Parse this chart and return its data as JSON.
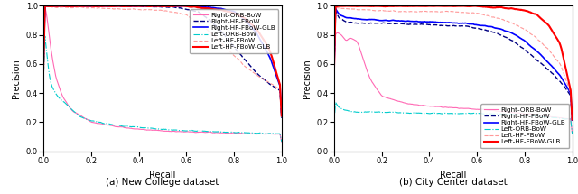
{
  "subplot_titles": [
    "(a) New College dataset",
    "(b) City Center dataset"
  ],
  "xlabel": "Recall",
  "ylabel": "Precision",
  "xlim": [
    0,
    1
  ],
  "ylim": [
    0,
    1
  ],
  "legend_entries": [
    "Right-ORB-BoW",
    "Right-HF-FBoW",
    "Right-HF-FBoW-GLB",
    "Left-ORB-BoW",
    "Left-HF-FBoW",
    "Left-HF-FBoW-GLB"
  ],
  "line_styles": [
    {
      "color": "#ff69b4",
      "linestyle": "-",
      "linewidth": 0.8
    },
    {
      "color": "#000080",
      "linestyle": "--",
      "linewidth": 1.0
    },
    {
      "color": "#0000ff",
      "linestyle": "-",
      "linewidth": 1.2
    },
    {
      "color": "#00cccc",
      "linestyle": "-.",
      "linewidth": 0.8
    },
    {
      "color": "#ff9999",
      "linestyle": "--",
      "linewidth": 0.8
    },
    {
      "color": "#ff0000",
      "linestyle": "-",
      "linewidth": 1.5
    }
  ],
  "nc_curves": [
    [
      [
        0,
        1.0
      ],
      [
        0.01,
        0.99
      ],
      [
        0.03,
        0.72
      ],
      [
        0.05,
        0.52
      ],
      [
        0.08,
        0.38
      ],
      [
        0.12,
        0.28
      ],
      [
        0.2,
        0.2
      ],
      [
        0.35,
        0.16
      ],
      [
        0.5,
        0.14
      ],
      [
        0.7,
        0.13
      ],
      [
        0.9,
        0.12
      ],
      [
        1.0,
        0.12
      ]
    ],
    [
      [
        0,
        1.0
      ],
      [
        0.05,
        1.0
      ],
      [
        0.2,
        1.0
      ],
      [
        0.4,
        1.0
      ],
      [
        0.55,
        0.99
      ],
      [
        0.65,
        0.96
      ],
      [
        0.7,
        0.9
      ],
      [
        0.75,
        0.82
      ],
      [
        0.8,
        0.72
      ],
      [
        0.85,
        0.62
      ],
      [
        0.9,
        0.53
      ],
      [
        0.95,
        0.46
      ],
      [
        1.0,
        0.41
      ]
    ],
    [
      [
        0,
        1.0
      ],
      [
        0.05,
        1.0
      ],
      [
        0.2,
        1.0
      ],
      [
        0.4,
        1.0
      ],
      [
        0.6,
        1.0
      ],
      [
        0.7,
        0.99
      ],
      [
        0.75,
        0.98
      ],
      [
        0.8,
        0.96
      ],
      [
        0.85,
        0.9
      ],
      [
        0.9,
        0.8
      ],
      [
        0.95,
        0.65
      ],
      [
        1.0,
        0.42
      ]
    ],
    [
      [
        0,
        0.88
      ],
      [
        0.01,
        0.75
      ],
      [
        0.02,
        0.58
      ],
      [
        0.03,
        0.47
      ],
      [
        0.05,
        0.4
      ],
      [
        0.07,
        0.36
      ],
      [
        0.1,
        0.32
      ],
      [
        0.15,
        0.24
      ],
      [
        0.2,
        0.21
      ],
      [
        0.3,
        0.18
      ],
      [
        0.5,
        0.15
      ],
      [
        0.8,
        0.13
      ],
      [
        1.0,
        0.12
      ]
    ],
    [
      [
        0,
        1.0
      ],
      [
        0.05,
        0.99
      ],
      [
        0.15,
        0.99
      ],
      [
        0.3,
        0.98
      ],
      [
        0.5,
        0.97
      ],
      [
        0.6,
        0.94
      ],
      [
        0.65,
        0.88
      ],
      [
        0.7,
        0.82
      ],
      [
        0.75,
        0.74
      ],
      [
        0.8,
        0.66
      ],
      [
        0.85,
        0.58
      ],
      [
        0.9,
        0.52
      ],
      [
        0.95,
        0.47
      ],
      [
        1.0,
        0.42
      ]
    ],
    [
      [
        0,
        1.0
      ],
      [
        0.05,
        1.0
      ],
      [
        0.15,
        1.0
      ],
      [
        0.3,
        1.0
      ],
      [
        0.5,
        1.0
      ],
      [
        0.6,
        1.0
      ],
      [
        0.65,
        0.99
      ],
      [
        0.7,
        0.98
      ],
      [
        0.75,
        0.97
      ],
      [
        0.8,
        0.95
      ],
      [
        0.85,
        0.91
      ],
      [
        0.9,
        0.83
      ],
      [
        0.95,
        0.7
      ],
      [
        1.0,
        0.42
      ]
    ]
  ],
  "cc_curves": [
    [
      [
        0,
        0.78
      ],
      [
        0.01,
        0.82
      ],
      [
        0.03,
        0.8
      ],
      [
        0.05,
        0.76
      ],
      [
        0.07,
        0.78
      ],
      [
        0.1,
        0.75
      ],
      [
        0.12,
        0.65
      ],
      [
        0.15,
        0.5
      ],
      [
        0.2,
        0.38
      ],
      [
        0.3,
        0.33
      ],
      [
        0.4,
        0.31
      ],
      [
        0.6,
        0.29
      ],
      [
        0.8,
        0.26
      ],
      [
        1.0,
        0.22
      ]
    ],
    [
      [
        0,
        0.99
      ],
      [
        0.02,
        0.92
      ],
      [
        0.05,
        0.89
      ],
      [
        0.1,
        0.88
      ],
      [
        0.2,
        0.88
      ],
      [
        0.4,
        0.87
      ],
      [
        0.55,
        0.86
      ],
      [
        0.65,
        0.83
      ],
      [
        0.7,
        0.8
      ],
      [
        0.75,
        0.76
      ],
      [
        0.8,
        0.7
      ],
      [
        0.85,
        0.63
      ],
      [
        0.9,
        0.56
      ],
      [
        0.95,
        0.48
      ],
      [
        1.0,
        0.37
      ]
    ],
    [
      [
        0,
        1.0
      ],
      [
        0.02,
        0.94
      ],
      [
        0.05,
        0.92
      ],
      [
        0.1,
        0.91
      ],
      [
        0.2,
        0.9
      ],
      [
        0.4,
        0.89
      ],
      [
        0.55,
        0.88
      ],
      [
        0.65,
        0.86
      ],
      [
        0.7,
        0.84
      ],
      [
        0.75,
        0.81
      ],
      [
        0.8,
        0.76
      ],
      [
        0.85,
        0.69
      ],
      [
        0.9,
        0.61
      ],
      [
        0.95,
        0.52
      ],
      [
        1.0,
        0.38
      ]
    ],
    [
      [
        0,
        0.35
      ],
      [
        0.02,
        0.3
      ],
      [
        0.05,
        0.28
      ],
      [
        0.1,
        0.27
      ],
      [
        0.2,
        0.27
      ],
      [
        0.4,
        0.26
      ],
      [
        0.6,
        0.26
      ],
      [
        0.8,
        0.25
      ],
      [
        1.0,
        0.22
      ]
    ],
    [
      [
        0,
        0.99
      ],
      [
        0.05,
        0.98
      ],
      [
        0.15,
        0.97
      ],
      [
        0.3,
        0.96
      ],
      [
        0.5,
        0.96
      ],
      [
        0.6,
        0.95
      ],
      [
        0.65,
        0.93
      ],
      [
        0.7,
        0.91
      ],
      [
        0.75,
        0.88
      ],
      [
        0.8,
        0.84
      ],
      [
        0.85,
        0.78
      ],
      [
        0.9,
        0.7
      ],
      [
        0.95,
        0.6
      ],
      [
        1.0,
        0.37
      ]
    ],
    [
      [
        0,
        1.0
      ],
      [
        0.05,
        1.0
      ],
      [
        0.15,
        1.0
      ],
      [
        0.3,
        1.0
      ],
      [
        0.5,
        1.0
      ],
      [
        0.6,
        1.0
      ],
      [
        0.65,
        0.99
      ],
      [
        0.7,
        0.99
      ],
      [
        0.75,
        0.98
      ],
      [
        0.8,
        0.97
      ],
      [
        0.85,
        0.94
      ],
      [
        0.9,
        0.87
      ],
      [
        0.95,
        0.74
      ],
      [
        1.0,
        0.37
      ]
    ]
  ]
}
